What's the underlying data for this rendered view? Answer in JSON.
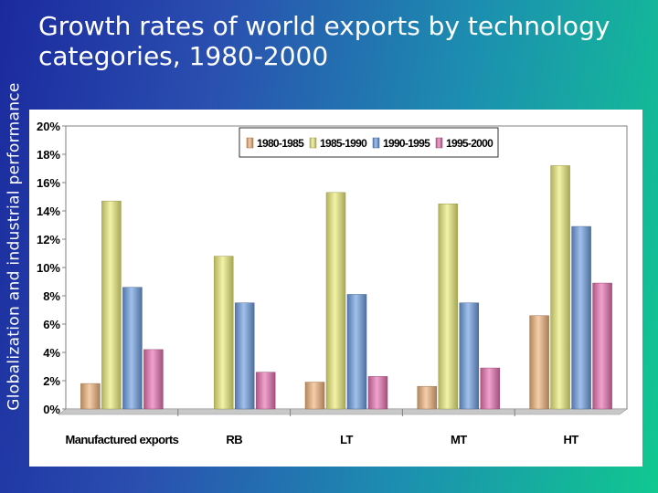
{
  "side_title": "Globalization and industrial performance",
  "slide_title": "Growth rates of world exports by technology categories, 1980-2000",
  "colors": {
    "background_left": "#1b2a9e",
    "background_right": "#10c890",
    "series": [
      "#f0b47c",
      "#eded7a",
      "#6f9fe2",
      "#e872b2"
    ]
  },
  "chart_data": {
    "type": "bar",
    "title": "",
    "categories": [
      "Manufactured exports",
      "RB",
      "LT",
      "MT",
      "HT"
    ],
    "series": [
      {
        "name": "1980-1985",
        "values": [
          1.8,
          0,
          1.9,
          1.6,
          6.6
        ]
      },
      {
        "name": "1985-1990",
        "values": [
          14.7,
          10.8,
          15.3,
          14.5,
          17.2
        ]
      },
      {
        "name": "1990-1995",
        "values": [
          8.6,
          7.5,
          8.1,
          7.5,
          12.9
        ]
      },
      {
        "name": "1995-2000",
        "values": [
          4.2,
          2.6,
          2.3,
          2.9,
          8.9
        ]
      }
    ],
    "y_ticks": [
      "0%",
      "2%",
      "4%",
      "6%",
      "8%",
      "10%",
      "12%",
      "14%",
      "16%",
      "18%",
      "20%"
    ],
    "ylim": [
      0,
      20
    ],
    "y_unit": "%",
    "grid": false,
    "legend_position": "top-right"
  }
}
